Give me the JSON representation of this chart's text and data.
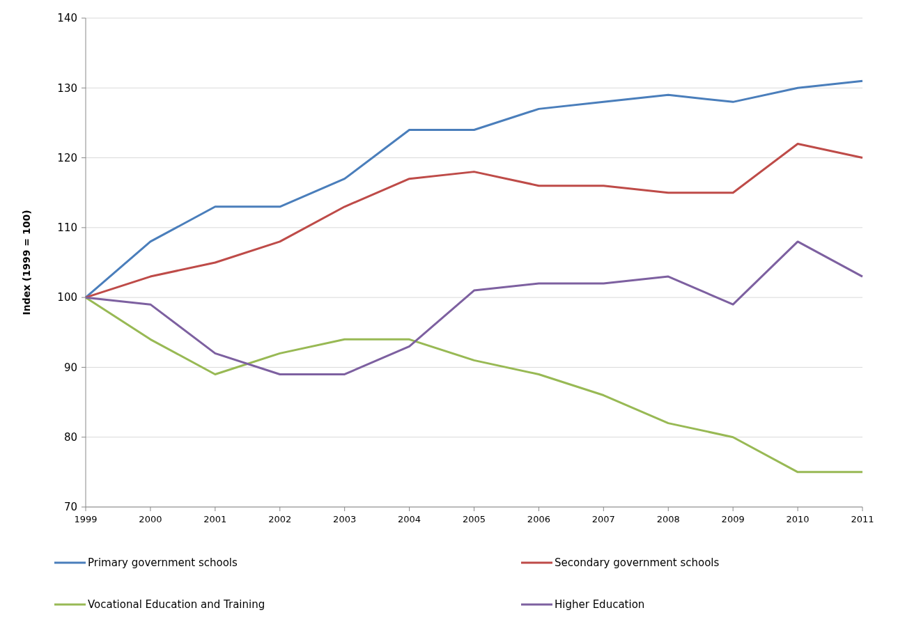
{
  "chart_data": {
    "type": "line",
    "ylabel": "Index (1999 = 100)",
    "categories": [
      "1999",
      "2000",
      "2001",
      "2002",
      "2003",
      "2004",
      "2005",
      "2006",
      "2007",
      "2008",
      "2009",
      "2010",
      "2011"
    ],
    "series": [
      {
        "name": "Primary government schools",
        "color": "#4a7ebb",
        "values": [
          100,
          108,
          113,
          113,
          117,
          124,
          124,
          127,
          128,
          129,
          128,
          130,
          131
        ]
      },
      {
        "name": "Secondary government schools",
        "color": "#be4b48",
        "values": [
          100,
          103,
          105,
          108,
          113,
          117,
          118,
          116,
          116,
          115,
          115,
          122,
          120
        ]
      },
      {
        "name": "Vocational Education and Training",
        "color": "#98b954",
        "values": [
          100,
          94,
          89,
          92,
          94,
          94,
          91,
          89,
          86,
          82,
          80,
          75,
          75
        ]
      },
      {
        "name": "Higher Education",
        "color": "#7d60a0",
        "values": [
          100,
          99,
          92,
          89,
          89,
          93,
          101,
          102,
          102,
          103,
          99,
          108,
          103
        ]
      }
    ],
    "ylim": [
      70,
      140
    ],
    "yticks": [
      70,
      80,
      90,
      100,
      110,
      120,
      130,
      140
    ],
    "grid": "y",
    "legend": "bottom",
    "marker": "none",
    "line_style": "solid"
  }
}
